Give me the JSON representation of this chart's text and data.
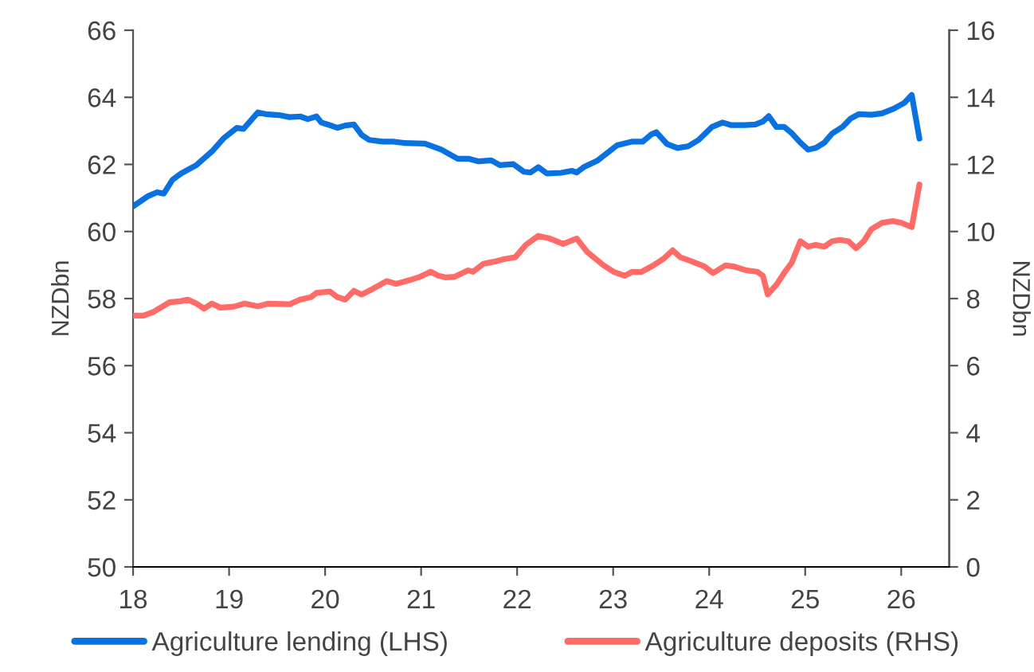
{
  "chart_data": {
    "type": "line",
    "series": [
      {
        "name": "Agriculture lending (LHS)",
        "color": "#0a72e0",
        "x": [
          18.0,
          18.16,
          18.25,
          18.32,
          18.41,
          18.5,
          18.66,
          18.83,
          18.94,
          19.08,
          19.15,
          19.3,
          19.38,
          19.52,
          19.63,
          19.74,
          19.82,
          19.91,
          19.96,
          20.07,
          20.13,
          20.21,
          20.3,
          20.38,
          20.46,
          20.6,
          20.71,
          20.82,
          21.04,
          21.21,
          21.38,
          21.49,
          21.6,
          21.73,
          21.82,
          21.96,
          22.07,
          22.14,
          22.22,
          22.31,
          22.46,
          22.57,
          22.62,
          22.7,
          22.84,
          23.04,
          23.2,
          23.31,
          23.4,
          23.45,
          23.56,
          23.67,
          23.78,
          23.89,
          24.03,
          24.14,
          24.23,
          24.37,
          24.48,
          24.56,
          24.62,
          24.7,
          24.78,
          24.86,
          24.95,
          25.03,
          25.11,
          25.2,
          25.28,
          25.39,
          25.47,
          25.56,
          25.69,
          25.8,
          25.92,
          26.03,
          26.11,
          26.19
        ],
        "values": [
          60.75,
          61.06,
          61.17,
          61.13,
          61.54,
          61.73,
          61.98,
          62.41,
          62.77,
          63.09,
          63.06,
          63.55,
          63.5,
          63.47,
          63.41,
          63.43,
          63.35,
          63.43,
          63.25,
          63.15,
          63.09,
          63.16,
          63.19,
          62.88,
          62.73,
          62.68,
          62.68,
          62.64,
          62.62,
          62.44,
          62.17,
          62.17,
          62.09,
          62.12,
          61.98,
          62.01,
          61.78,
          61.76,
          61.92,
          61.73,
          61.75,
          61.81,
          61.76,
          61.93,
          62.12,
          62.57,
          62.68,
          62.68,
          62.9,
          62.96,
          62.61,
          62.49,
          62.54,
          62.73,
          63.12,
          63.25,
          63.17,
          63.17,
          63.19,
          63.28,
          63.44,
          63.12,
          63.12,
          62.93,
          62.65,
          62.44,
          62.49,
          62.65,
          62.92,
          63.12,
          63.36,
          63.5,
          63.48,
          63.52,
          63.66,
          63.83,
          64.07,
          62.77
        ]
      },
      {
        "name": "Agriculture deposits (RHS)",
        "color": "#ff6b66",
        "axis": "y2",
        "x": [
          18.0,
          18.11,
          18.21,
          18.38,
          18.49,
          18.57,
          18.66,
          18.74,
          18.82,
          18.91,
          19.05,
          19.16,
          19.3,
          19.41,
          19.63,
          19.74,
          19.85,
          19.91,
          20.05,
          20.13,
          20.21,
          20.3,
          20.38,
          20.49,
          20.64,
          20.74,
          20.88,
          20.99,
          21.1,
          21.18,
          21.26,
          21.35,
          21.49,
          21.54,
          21.65,
          21.76,
          21.87,
          21.98,
          22.09,
          22.22,
          22.34,
          22.48,
          22.62,
          22.73,
          22.9,
          23.01,
          23.12,
          23.2,
          23.29,
          23.42,
          23.53,
          23.62,
          23.7,
          23.81,
          23.95,
          24.04,
          24.17,
          24.25,
          24.39,
          24.5,
          24.56,
          24.61,
          24.7,
          24.78,
          24.86,
          24.95,
          25.03,
          25.11,
          25.2,
          25.28,
          25.36,
          25.45,
          25.53,
          25.61,
          25.69,
          25.8,
          25.92,
          26.0,
          26.11,
          26.19
        ],
        "values": [
          7.49,
          7.49,
          7.6,
          7.89,
          7.92,
          7.97,
          7.85,
          7.7,
          7.85,
          7.73,
          7.76,
          7.85,
          7.77,
          7.85,
          7.83,
          7.97,
          8.04,
          8.17,
          8.21,
          8.04,
          7.97,
          8.23,
          8.12,
          8.28,
          8.52,
          8.44,
          8.55,
          8.65,
          8.8,
          8.68,
          8.63,
          8.65,
          8.84,
          8.8,
          9.04,
          9.1,
          9.18,
          9.23,
          9.6,
          9.87,
          9.79,
          9.63,
          9.79,
          9.39,
          8.99,
          8.79,
          8.68,
          8.8,
          8.79,
          8.99,
          9.2,
          9.44,
          9.23,
          9.12,
          8.96,
          8.76,
          8.99,
          8.96,
          8.84,
          8.8,
          8.68,
          8.12,
          8.41,
          8.76,
          9.07,
          9.71,
          9.55,
          9.6,
          9.55,
          9.71,
          9.75,
          9.71,
          9.5,
          9.71,
          10.07,
          10.26,
          10.31,
          10.26,
          10.13,
          11.4
        ]
      }
    ],
    "xlim": [
      18,
      26.5
    ],
    "xticks": [
      18,
      19,
      20,
      21,
      22,
      23,
      24,
      25,
      26
    ],
    "ylim": [
      50,
      66
    ],
    "yticks": [
      50,
      52,
      54,
      56,
      58,
      60,
      62,
      64,
      66
    ],
    "y2lim": [
      0,
      16
    ],
    "y2ticks": [
      0,
      2,
      4,
      6,
      8,
      10,
      12,
      14,
      16
    ],
    "ylabel": "NZDbn",
    "y2label": "NZDbn",
    "legend": "bottom",
    "grid": false,
    "marker": "none",
    "line_style": "solid"
  }
}
